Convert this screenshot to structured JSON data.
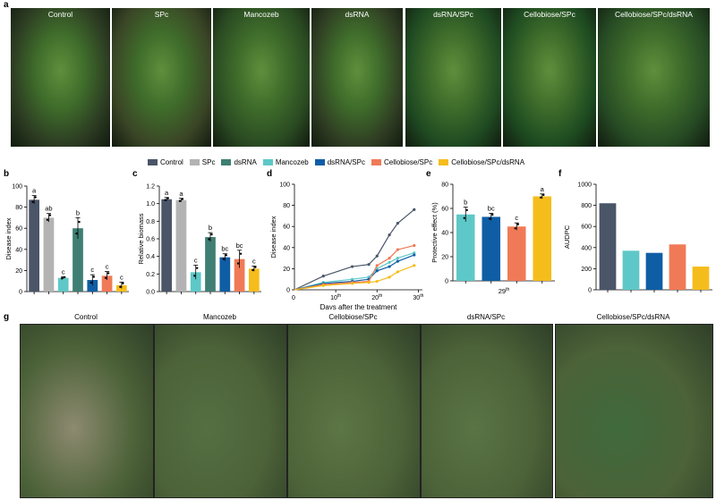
{
  "figure": {
    "panel_letters": [
      "a",
      "b",
      "c",
      "d",
      "e",
      "f",
      "g"
    ],
    "top_photos": [
      {
        "label": "Control",
        "tone": "#2c3b22"
      },
      {
        "label": "SPc",
        "tone": "#3a4526"
      },
      {
        "label": "Mancozeb",
        "tone": "#2a4a22"
      },
      {
        "label": "dsRNA",
        "tone": "#2f3d23"
      },
      {
        "label": "dsRNA/SPc",
        "tone": "#1f4a22"
      },
      {
        "label": "Cellobiose/SPc",
        "tone": "#1d4a20"
      },
      {
        "label": "Cellobiose/SPc/dsRNA",
        "tone": "#264a24"
      }
    ],
    "field_photos": [
      {
        "label": "Control",
        "tone": "#8d8a70"
      },
      {
        "label": "Mancozeb",
        "tone": "#556f42"
      },
      {
        "label": "Cellobiose/SPc",
        "tone": "#5d7645"
      },
      {
        "label": "dsRNA/SPc",
        "tone": "#5a7446"
      },
      {
        "label": "Cellobiose/SPc/dsRNA",
        "tone": "#3f6a3c"
      }
    ]
  },
  "legend": [
    {
      "name": "Control",
      "color": "#4a5568"
    },
    {
      "name": "SPc",
      "color": "#b3b3b3"
    },
    {
      "name": "dsRNA",
      "color": "#3f7f73"
    },
    {
      "name": "Mancozeb",
      "color": "#5ec8c8"
    },
    {
      "name": "dsRNA/SPc",
      "color": "#0f5ea5"
    },
    {
      "name": "Cellobiose/SPc",
      "color": "#f07a57"
    },
    {
      "name": "Cellobiose/SPc/dsRNA",
      "color": "#f5bd1c"
    }
  ],
  "chart_data": [
    {
      "panel": "b",
      "type": "bar",
      "ylabel": "Disease index",
      "ylim": [
        0,
        100
      ],
      "yticks": [
        0,
        20,
        40,
        60,
        80,
        100
      ],
      "categories": [
        "Control",
        "SPc",
        "Mancozeb",
        "dsRNA",
        "dsRNA/SPc",
        "Cellobiose/SPc",
        "Cellobiose/SPc/dsRNA"
      ],
      "values": [
        87,
        70,
        13,
        60,
        11,
        15,
        6
      ],
      "errors": [
        4,
        4,
        1,
        10,
        5,
        4,
        3
      ],
      "letters": [
        "a",
        "ab",
        "c",
        "b",
        "c",
        "c",
        "c"
      ],
      "colors": [
        "#4a5568",
        "#b3b3b3",
        "#5ec8c8",
        "#3f7f73",
        "#0f5ea5",
        "#f07a57",
        "#f5bd1c"
      ]
    },
    {
      "panel": "c",
      "type": "bar",
      "ylabel": "Relative biomass",
      "ylim": [
        0,
        1.2
      ],
      "yticks": [
        0.0,
        0.2,
        0.4,
        0.6,
        0.8,
        1.0,
        1.2
      ],
      "categories": [
        "Control",
        "SPc",
        "Mancozeb",
        "dsRNA",
        "dsRNA/SPc",
        "Cellobiose/SPc",
        "Cellobiose/SPc/dsRNA"
      ],
      "values": [
        1.05,
        1.04,
        0.22,
        0.62,
        0.39,
        0.37,
        0.26
      ],
      "errors": [
        0.02,
        0.02,
        0.08,
        0.05,
        0.04,
        0.1,
        0.03
      ],
      "letters": [
        "a",
        "a",
        "c",
        "b",
        "bc",
        "bc",
        "c"
      ],
      "colors": [
        "#4a5568",
        "#b3b3b3",
        "#5ec8c8",
        "#3f7f73",
        "#0f5ea5",
        "#f07a57",
        "#f5bd1c"
      ]
    },
    {
      "panel": "d",
      "type": "line",
      "xlabel": "Days after the treatment",
      "ylabel": "Disease index",
      "xlim": [
        0,
        31
      ],
      "ylim": [
        0,
        100
      ],
      "yticks": [
        0,
        20,
        40,
        60,
        80,
        100
      ],
      "xticks": [
        {
          "v": 10,
          "label": "10",
          "sup": "th"
        },
        {
          "v": 20,
          "label": "20",
          "sup": "th"
        },
        {
          "v": 30,
          "label": "30",
          "sup": "th"
        }
      ],
      "x": [
        0,
        7,
        14,
        18,
        20,
        23,
        25,
        29
      ],
      "series": [
        {
          "color": "#4a5568",
          "values": [
            0,
            13,
            22,
            24,
            32,
            52,
            63,
            76
          ]
        },
        {
          "color": "#5ec8c8",
          "values": [
            0,
            7,
            10,
            12,
            20,
            26,
            30,
            35
          ]
        },
        {
          "color": "#0f5ea5",
          "values": [
            0,
            6,
            8,
            10,
            18,
            22,
            27,
            33
          ]
        },
        {
          "color": "#f07a57",
          "values": [
            0,
            5,
            7,
            8,
            23,
            30,
            38,
            42
          ]
        },
        {
          "color": "#f5bd1c",
          "values": [
            0,
            4,
            6,
            7,
            8,
            12,
            17,
            23
          ]
        }
      ]
    },
    {
      "panel": "e",
      "type": "bar",
      "ylabel": "Protective effect (%)",
      "ylim": [
        0,
        80
      ],
      "yticks": [
        0,
        20,
        40,
        60,
        80
      ],
      "xlabel": "29",
      "xlabel_sup": "th",
      "categories": [
        "Mancozeb",
        "dsRNA/SPc",
        "Cellobiose/SPc",
        "Cellobiose/SPc/dsRNA"
      ],
      "values": [
        55,
        53,
        45,
        70
      ],
      "errors": [
        6,
        3,
        3,
        2
      ],
      "letters": [
        "b",
        "bc",
        "c",
        "a"
      ],
      "colors": [
        "#5ec8c8",
        "#0f5ea5",
        "#f07a57",
        "#f5bd1c"
      ]
    },
    {
      "panel": "f",
      "type": "bar",
      "ylabel": "AUDPC",
      "ylim": [
        0,
        1000
      ],
      "yticks": [
        0,
        200,
        400,
        600,
        800,
        1000
      ],
      "categories": [
        "Control",
        "Mancozeb",
        "dsRNA/SPc",
        "Cellobiose/SPc",
        "Cellobiose/SPc/dsRNA"
      ],
      "values": [
        820,
        370,
        350,
        430,
        220
      ],
      "colors": [
        "#4a5568",
        "#5ec8c8",
        "#0f5ea5",
        "#f07a57",
        "#f5bd1c"
      ]
    }
  ]
}
